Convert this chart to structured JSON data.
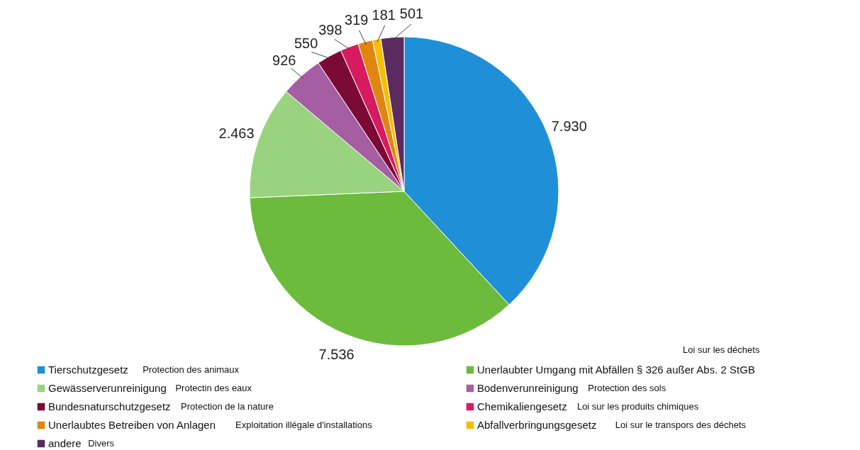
{
  "chart_data": {
    "type": "pie",
    "categories": [
      "Tierschutzgesetz",
      "Unerlaubter Umgang mit Abfällen § 326 außer Abs. 2 StGB",
      "Gewässerverunreinigung",
      "Bodenverunreinigung",
      "Bundesnaturschutzgesetz",
      "Chemikaliengesetz",
      "Unerlaubtes Betreiben von Anlagen",
      "Abfallverbringungsgesetz",
      "andere"
    ],
    "values": [
      7930,
      7536,
      2463,
      926,
      550,
      398,
      319,
      181,
      501
    ],
    "value_labels": [
      "7.930",
      "7.536",
      "2.463",
      "926",
      "550",
      "398",
      "319",
      "181",
      "501"
    ],
    "colors": [
      "#1f8fd8",
      "#6cbb3c",
      "#99d37f",
      "#a65ea3",
      "#7b0a35",
      "#d81b60",
      "#e0860f",
      "#f7bd0b",
      "#5b2a5e"
    ],
    "annotations": [
      "Protection des animaux",
      "Loi sur les déchets",
      "Protectin des eaux",
      "Protection des sols",
      "Protection de la nature",
      "Loi sur les produits chimiques",
      "Exploitation illégale d'installations",
      "Loi sur le transpors des déchets",
      "Divers"
    ],
    "legend": "bottom"
  }
}
